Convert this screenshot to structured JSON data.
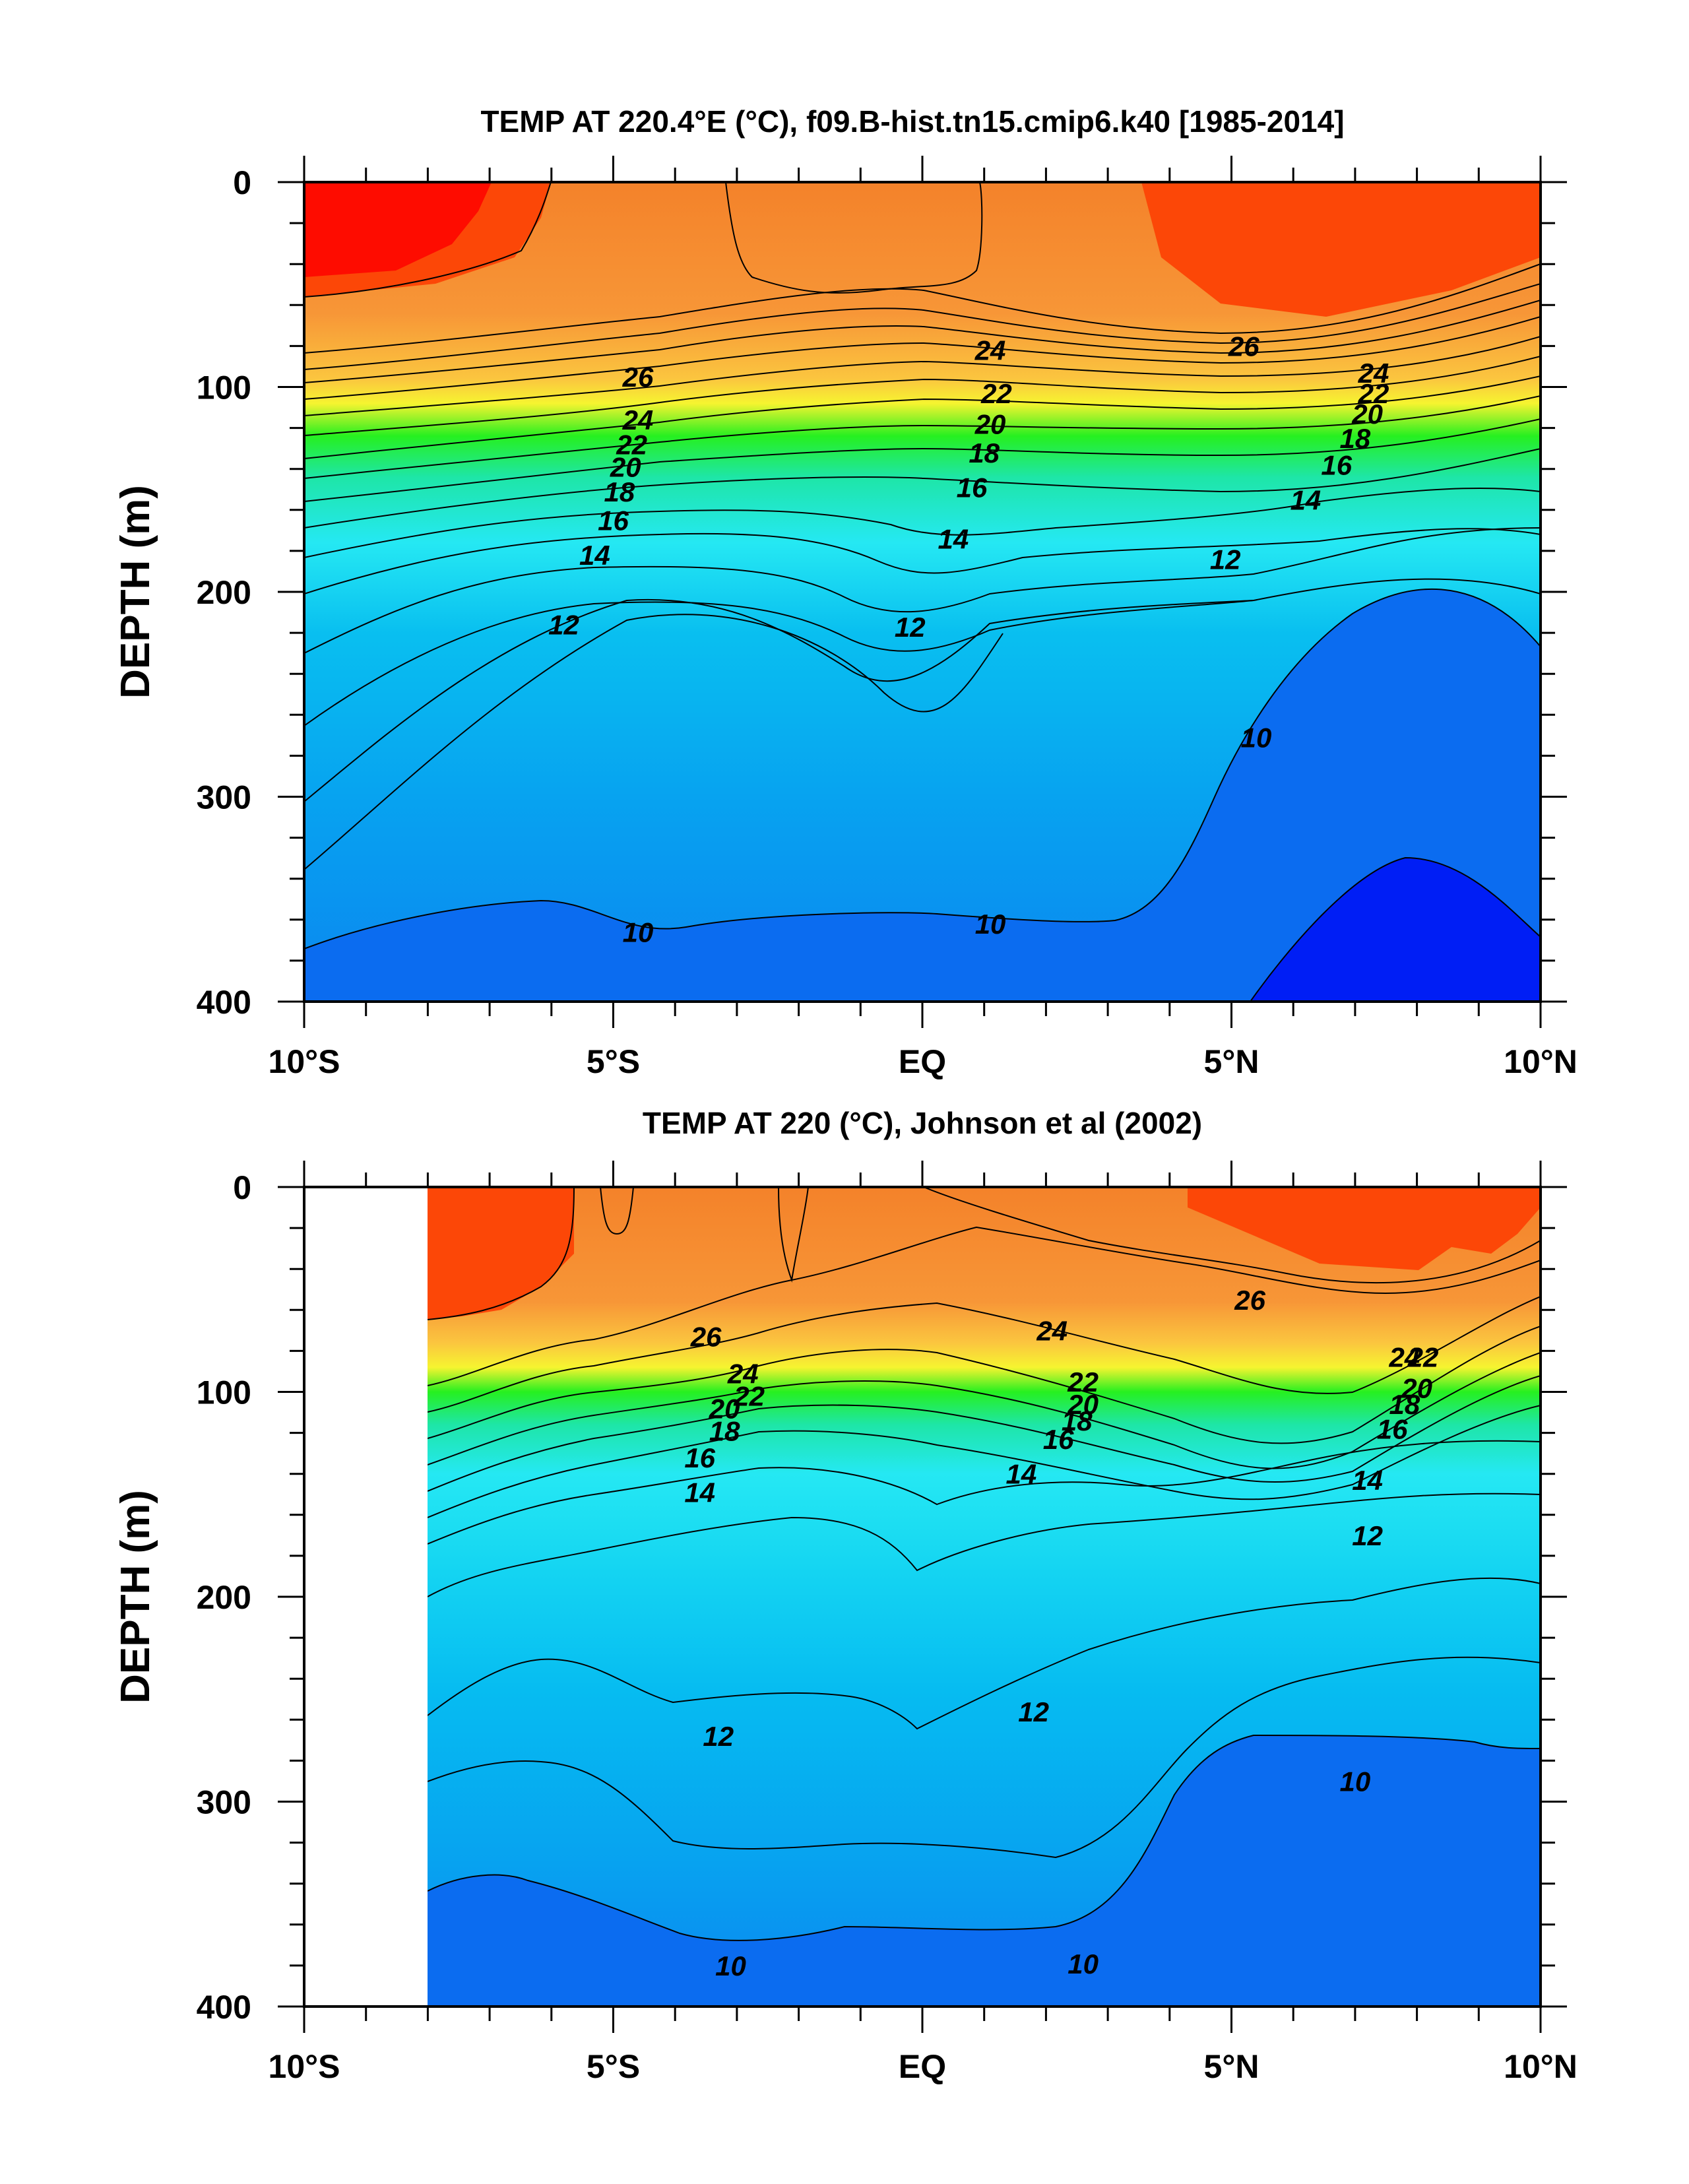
{
  "chart_data": [
    {
      "type": "contour",
      "title": "TEMP AT 220.4°E (°C), f09.B-hist.tn15.cmip6.k40 [1985-2014]",
      "ylabel": "DEPTH (m)",
      "xlabel": "",
      "x_ticks": [
        "10°S",
        "5°S",
        "EQ",
        "5°N",
        "10°N"
      ],
      "x_tick_values": [
        -10,
        -5,
        0,
        5,
        10
      ],
      "y_ticks": [
        "0",
        "100",
        "200",
        "300",
        "400"
      ],
      "y_tick_values": [
        0,
        100,
        200,
        300,
        400
      ],
      "xlim": [
        -10,
        10
      ],
      "ylim": [
        400,
        0
      ],
      "data_xlim": [
        -10,
        10
      ],
      "contour_interval": 1,
      "contour_labels": [
        {
          "text": "26",
          "lat": -4.6,
          "depth": 95
        },
        {
          "text": "24",
          "lat": 1.1,
          "depth": 82
        },
        {
          "text": "26",
          "lat": 5.2,
          "depth": 80
        },
        {
          "text": "24",
          "lat": -4.6,
          "depth": 116
        },
        {
          "text": "22",
          "lat": 1.2,
          "depth": 103
        },
        {
          "text": "24",
          "lat": 7.3,
          "depth": 93
        },
        {
          "text": "22",
          "lat": 7.3,
          "depth": 103
        },
        {
          "text": "22",
          "lat": -4.7,
          "depth": 128
        },
        {
          "text": "20",
          "lat": -4.8,
          "depth": 139
        },
        {
          "text": "20",
          "lat": 1.1,
          "depth": 118
        },
        {
          "text": "20",
          "lat": 7.2,
          "depth": 113
        },
        {
          "text": "18",
          "lat": 1.0,
          "depth": 132
        },
        {
          "text": "18",
          "lat": 7.0,
          "depth": 125
        },
        {
          "text": "18",
          "lat": -4.9,
          "depth": 151
        },
        {
          "text": "16",
          "lat": 6.7,
          "depth": 138
        },
        {
          "text": "16",
          "lat": 0.8,
          "depth": 149
        },
        {
          "text": "16",
          "lat": -5.0,
          "depth": 165
        },
        {
          "text": "14",
          "lat": 6.2,
          "depth": 155
        },
        {
          "text": "14",
          "lat": 0.5,
          "depth": 174
        },
        {
          "text": "14",
          "lat": -5.3,
          "depth": 182
        },
        {
          "text": "12",
          "lat": 4.9,
          "depth": 184
        },
        {
          "text": "12",
          "lat": -0.2,
          "depth": 217
        },
        {
          "text": "12",
          "lat": -5.8,
          "depth": 216
        },
        {
          "text": "10",
          "lat": 5.4,
          "depth": 271
        },
        {
          "text": "10",
          "lat": -4.6,
          "depth": 366
        },
        {
          "text": "10",
          "lat": 1.1,
          "depth": 362
        }
      ]
    },
    {
      "type": "contour",
      "title": "TEMP AT 220 (°C), Johnson et al (2002)",
      "ylabel": "DEPTH (m)",
      "xlabel": "",
      "x_ticks": [
        "10°S",
        "5°S",
        "EQ",
        "5°N",
        "10°N"
      ],
      "x_tick_values": [
        -10,
        -5,
        0,
        5,
        10
      ],
      "y_ticks": [
        "0",
        "100",
        "200",
        "300",
        "400"
      ],
      "y_tick_values": [
        0,
        100,
        200,
        300,
        400
      ],
      "xlim": [
        -10,
        10
      ],
      "ylim": [
        400,
        0
      ],
      "data_xlim": [
        -8,
        10
      ],
      "contour_interval": 1,
      "contour_labels": [
        {
          "text": "26",
          "lat": 5.3,
          "depth": 55
        },
        {
          "text": "26",
          "lat": -3.5,
          "depth": 73
        },
        {
          "text": "24",
          "lat": 2.1,
          "depth": 70
        },
        {
          "text": "24",
          "lat": 7.8,
          "depth": 83
        },
        {
          "text": "24",
          "lat": -2.9,
          "depth": 91
        },
        {
          "text": "22",
          "lat": -2.8,
          "depth": 102
        },
        {
          "text": "22",
          "lat": 2.6,
          "depth": 95
        },
        {
          "text": "22",
          "lat": 8.1,
          "depth": 83
        },
        {
          "text": "20",
          "lat": -3.2,
          "depth": 108
        },
        {
          "text": "20",
          "lat": 2.6,
          "depth": 106
        },
        {
          "text": "20",
          "lat": 8.0,
          "depth": 98
        },
        {
          "text": "18",
          "lat": -3.2,
          "depth": 119
        },
        {
          "text": "18",
          "lat": 2.5,
          "depth": 114
        },
        {
          "text": "18",
          "lat": 7.8,
          "depth": 106
        },
        {
          "text": "16",
          "lat": -3.6,
          "depth": 132
        },
        {
          "text": "16",
          "lat": 2.2,
          "depth": 123
        },
        {
          "text": "16",
          "lat": 7.6,
          "depth": 118
        },
        {
          "text": "14",
          "lat": -3.6,
          "depth": 149
        },
        {
          "text": "14",
          "lat": 1.6,
          "depth": 140
        },
        {
          "text": "14",
          "lat": 7.2,
          "depth": 143
        },
        {
          "text": "12",
          "lat": 7.2,
          "depth": 170
        },
        {
          "text": "12",
          "lat": 1.8,
          "depth": 256
        },
        {
          "text": "12",
          "lat": -3.3,
          "depth": 268
        },
        {
          "text": "10",
          "lat": 7.0,
          "depth": 290
        },
        {
          "text": "10",
          "lat": -3.1,
          "depth": 380
        },
        {
          "text": "10",
          "lat": 2.6,
          "depth": 379
        }
      ]
    }
  ]
}
